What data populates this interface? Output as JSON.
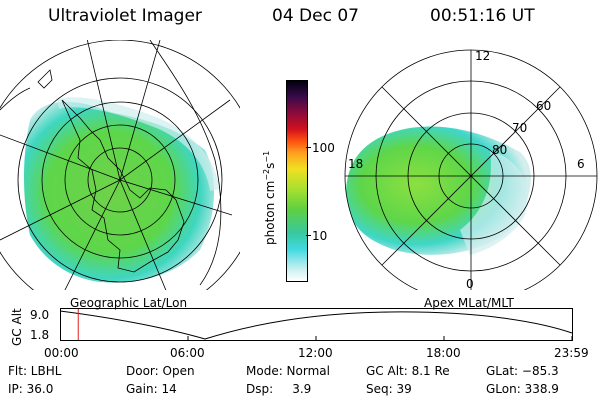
{
  "header": {
    "title": "Ultraviolet Imager",
    "date": "04 Dec 07",
    "time": "00:51:16 UT"
  },
  "geo_panel": {
    "label": "Geographic Lat/Lon"
  },
  "apex_panel": {
    "label": "Apex MLat/MLT",
    "mlt_labels": {
      "top": "12",
      "left": "18",
      "right": "6",
      "bottom": "0"
    },
    "lat_labels": [
      "60",
      "70",
      "80"
    ]
  },
  "colorbar": {
    "unit_label": "photon cm",
    "unit_exp1": "−2",
    "unit_mid": "s",
    "unit_exp2": "−1",
    "ticks": [
      "100",
      "10"
    ]
  },
  "altitude_plot": {
    "axis_label": "GC Alt",
    "y_ticks": [
      "9.0",
      "1.8"
    ],
    "x_ticks": [
      "00:00",
      "06:00",
      "12:00",
      "18:00",
      "23:59"
    ],
    "marker_time_hours": 0.855
  },
  "status": {
    "flt": "Flt: LBHL",
    "ip": "IP: 36.0",
    "door": "Door: Open",
    "gain": "Gain: 14",
    "mode": "Mode: Normal",
    "dsp": "Dsp:     3.9",
    "gc_alt": "GC Alt: 8.1 Re",
    "seq": "Seq: 39",
    "glat": "GLat: −85.3",
    "glon": "GLon: 338.9"
  },
  "colors": {
    "aurora_green": "#5ed64a",
    "aurora_lime": "#9be03c",
    "aurora_cyan": "#3fd6d6",
    "aurora_pale": "#cfeeee",
    "marker_red": "#e02020"
  }
}
